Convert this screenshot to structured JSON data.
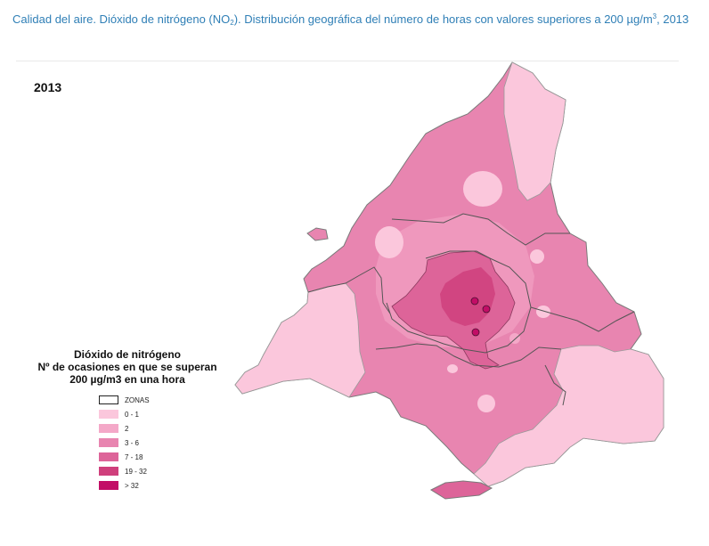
{
  "caption": {
    "part1": "Calidad del aire. Dióxido de nitrógeno (NO",
    "sub": "2",
    "part2": "). Distribución geográfica del número de horas con valores superiores a 200 µg/m",
    "sup": "3",
    "part3": ", 2013"
  },
  "map": {
    "year": "2013",
    "region": "Comunidad de Madrid"
  },
  "legend": {
    "title_lines": [
      "Dióxido de nitrógeno",
      "Nº de ocasiones en que se superan",
      "200 µg/m3 en una hora"
    ],
    "items": [
      {
        "label": "ZONAS",
        "color": "#ffffff",
        "border": "#222222"
      },
      {
        "label": "0 - 1",
        "color": "#fbc7dc",
        "border": ""
      },
      {
        "label": "2",
        "color": "#f4a8c8",
        "border": ""
      },
      {
        "label": "3 - 6",
        "color": "#e885b0",
        "border": ""
      },
      {
        "label": "7 - 18",
        "color": "#dd6499",
        "border": ""
      },
      {
        "label": "19 - 32",
        "color": "#cf3f7c",
        "border": ""
      },
      {
        "label": "> 32",
        "color": "#c20d66",
        "border": ""
      }
    ]
  }
}
